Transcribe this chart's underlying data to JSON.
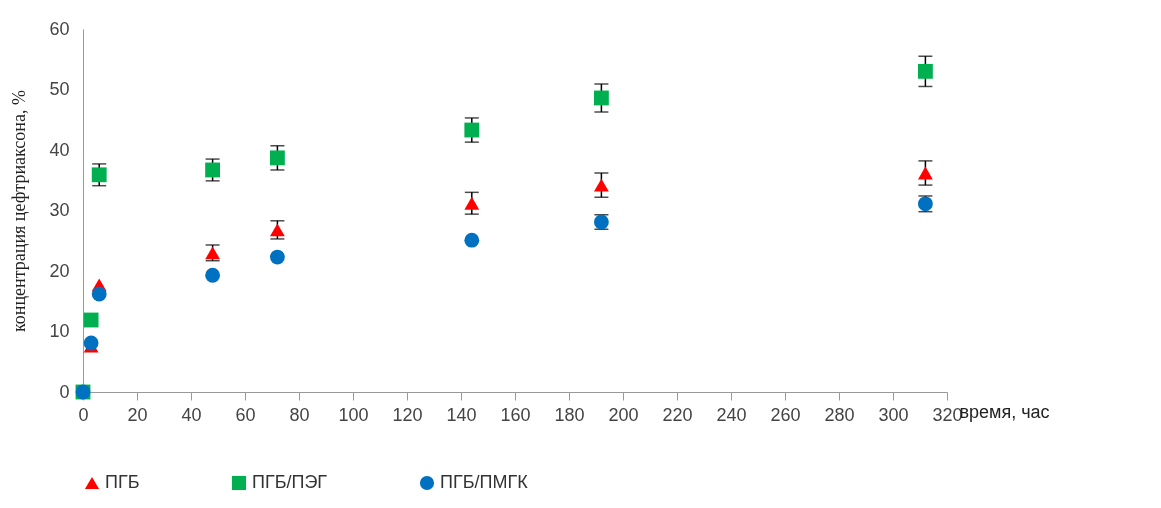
{
  "chart_data": {
    "type": "scatter",
    "xlabel": "время, час",
    "ylabel": "концентрация цефтриаксона, %",
    "xlim": [
      0,
      320
    ],
    "xticks": [
      0,
      20,
      40,
      60,
      80,
      100,
      120,
      140,
      160,
      180,
      200,
      220,
      240,
      260,
      280,
      300,
      320
    ],
    "ylim": [
      0,
      60
    ],
    "yticks": [
      0,
      10,
      20,
      30,
      40,
      50,
      60
    ],
    "grid": false,
    "legend": "bottom",
    "x": [
      0,
      3,
      6,
      48,
      72,
      144,
      192,
      312
    ],
    "series": [
      {
        "name": "ПГБ",
        "color": "#ff0000",
        "marker": "triangle",
        "values": [
          null,
          7.6,
          17.7,
          23,
          26.8,
          31.2,
          34.2,
          36.2
        ],
        "errors": [
          null,
          null,
          null,
          1.3,
          1.5,
          1.8,
          2,
          2
        ]
      },
      {
        "name": "ПГБ/ПЭГ",
        "color": "#00b050",
        "marker": "square",
        "values": [
          0,
          11.9,
          35.9,
          36.7,
          38.7,
          43.3,
          48.6,
          53
        ],
        "errors": [
          null,
          null,
          1.8,
          1.8,
          2,
          2,
          2.3,
          2.5
        ]
      },
      {
        "name": "ПГБ/ПМГК",
        "color": "#0070c0",
        "marker": "circle",
        "values": [
          0,
          8.1,
          16.2,
          19.3,
          22.3,
          25.1,
          28.1,
          31.1
        ],
        "errors": [
          null,
          null,
          null,
          null,
          null,
          null,
          1.2,
          1.3
        ]
      }
    ]
  }
}
